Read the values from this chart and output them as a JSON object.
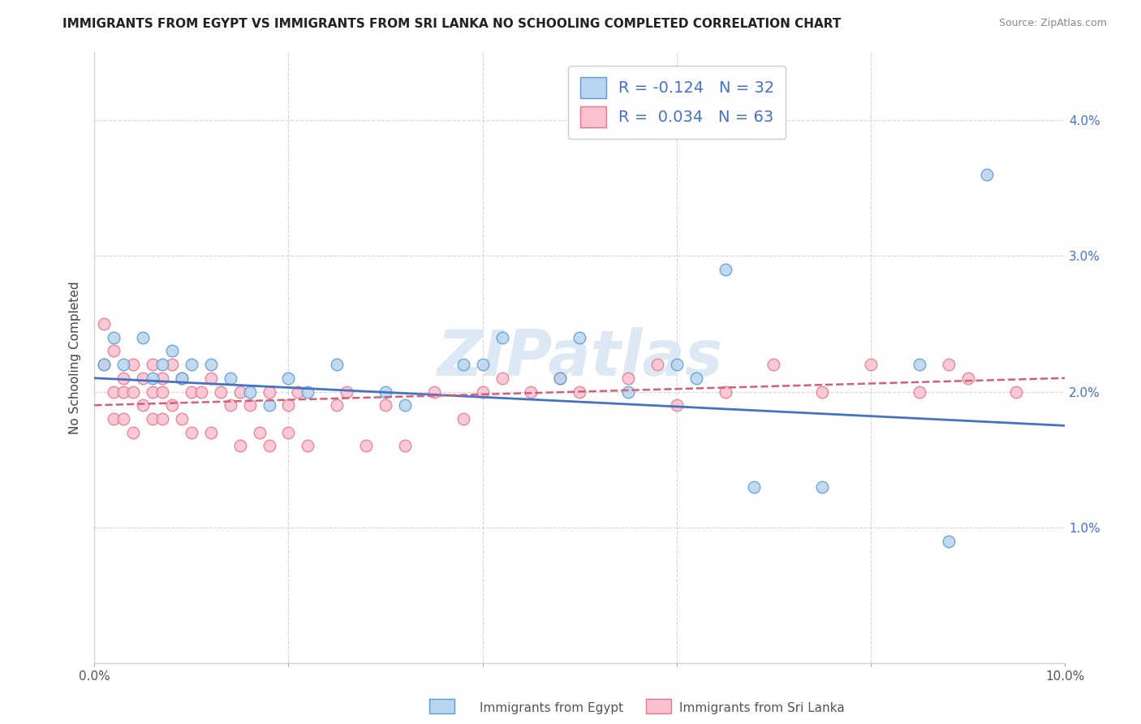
{
  "title": "IMMIGRANTS FROM EGYPT VS IMMIGRANTS FROM SRI LANKA NO SCHOOLING COMPLETED CORRELATION CHART",
  "source": "Source: ZipAtlas.com",
  "ylabel": "No Schooling Completed",
  "xlim": [
    0,
    0.1
  ],
  "ylim": [
    0,
    0.045
  ],
  "xticks": [
    0.0,
    0.02,
    0.04,
    0.06,
    0.08,
    0.1
  ],
  "xticklabels_bottom": [
    "0.0%",
    "",
    "",
    "",
    "",
    "10.0%"
  ],
  "yticks": [
    0.0,
    0.01,
    0.02,
    0.03,
    0.04
  ],
  "yticklabels_right": [
    "",
    "1.0%",
    "2.0%",
    "3.0%",
    "4.0%"
  ],
  "egypt_fill_color": "#b8d4ee",
  "srilanka_fill_color": "#f9c0d0",
  "egypt_edge_color": "#5b9bd5",
  "srilanka_edge_color": "#e8768a",
  "egypt_line_color": "#4472c4",
  "srilanka_line_color": "#d45f7a",
  "grid_color": "#cccccc",
  "watermark": "ZIPatlas",
  "watermark_color": "#dce9f5",
  "egypt_line_start_y": 0.021,
  "egypt_line_end_y": 0.0175,
  "srilanka_line_start_y": 0.019,
  "srilanka_line_end_y": 0.021,
  "egypt_x": [
    0.001,
    0.002,
    0.003,
    0.005,
    0.006,
    0.007,
    0.008,
    0.009,
    0.01,
    0.012,
    0.014,
    0.016,
    0.018,
    0.02,
    0.022,
    0.025,
    0.03,
    0.032,
    0.038,
    0.04,
    0.042,
    0.048,
    0.05,
    0.055,
    0.06,
    0.062,
    0.065,
    0.068,
    0.075,
    0.085,
    0.088,
    0.092
  ],
  "egypt_y": [
    0.022,
    0.024,
    0.022,
    0.024,
    0.021,
    0.022,
    0.023,
    0.021,
    0.022,
    0.022,
    0.021,
    0.02,
    0.019,
    0.021,
    0.02,
    0.022,
    0.02,
    0.019,
    0.022,
    0.022,
    0.024,
    0.021,
    0.024,
    0.02,
    0.022,
    0.021,
    0.029,
    0.013,
    0.013,
    0.022,
    0.009,
    0.036
  ],
  "srilanka_x": [
    0.001,
    0.001,
    0.002,
    0.002,
    0.002,
    0.003,
    0.003,
    0.003,
    0.004,
    0.004,
    0.004,
    0.005,
    0.005,
    0.006,
    0.006,
    0.006,
    0.007,
    0.007,
    0.007,
    0.008,
    0.008,
    0.009,
    0.009,
    0.01,
    0.01,
    0.011,
    0.012,
    0.012,
    0.013,
    0.014,
    0.015,
    0.015,
    0.016,
    0.017,
    0.018,
    0.018,
    0.02,
    0.02,
    0.021,
    0.022,
    0.025,
    0.026,
    0.028,
    0.03,
    0.032,
    0.035,
    0.038,
    0.04,
    0.042,
    0.045,
    0.048,
    0.05,
    0.055,
    0.058,
    0.06,
    0.065,
    0.07,
    0.075,
    0.08,
    0.085,
    0.088,
    0.09,
    0.095
  ],
  "srilanka_y": [
    0.025,
    0.022,
    0.023,
    0.02,
    0.018,
    0.021,
    0.02,
    0.018,
    0.022,
    0.02,
    0.017,
    0.021,
    0.019,
    0.022,
    0.02,
    0.018,
    0.021,
    0.02,
    0.018,
    0.022,
    0.019,
    0.021,
    0.018,
    0.02,
    0.017,
    0.02,
    0.021,
    0.017,
    0.02,
    0.019,
    0.02,
    0.016,
    0.019,
    0.017,
    0.02,
    0.016,
    0.019,
    0.017,
    0.02,
    0.016,
    0.019,
    0.02,
    0.016,
    0.019,
    0.016,
    0.02,
    0.018,
    0.02,
    0.021,
    0.02,
    0.021,
    0.02,
    0.021,
    0.022,
    0.019,
    0.02,
    0.022,
    0.02,
    0.022,
    0.02,
    0.022,
    0.021,
    0.02
  ],
  "marker_size": 110,
  "title_fontsize": 11,
  "tick_fontsize": 11,
  "label_fontsize": 11,
  "legend_fontsize": 13
}
